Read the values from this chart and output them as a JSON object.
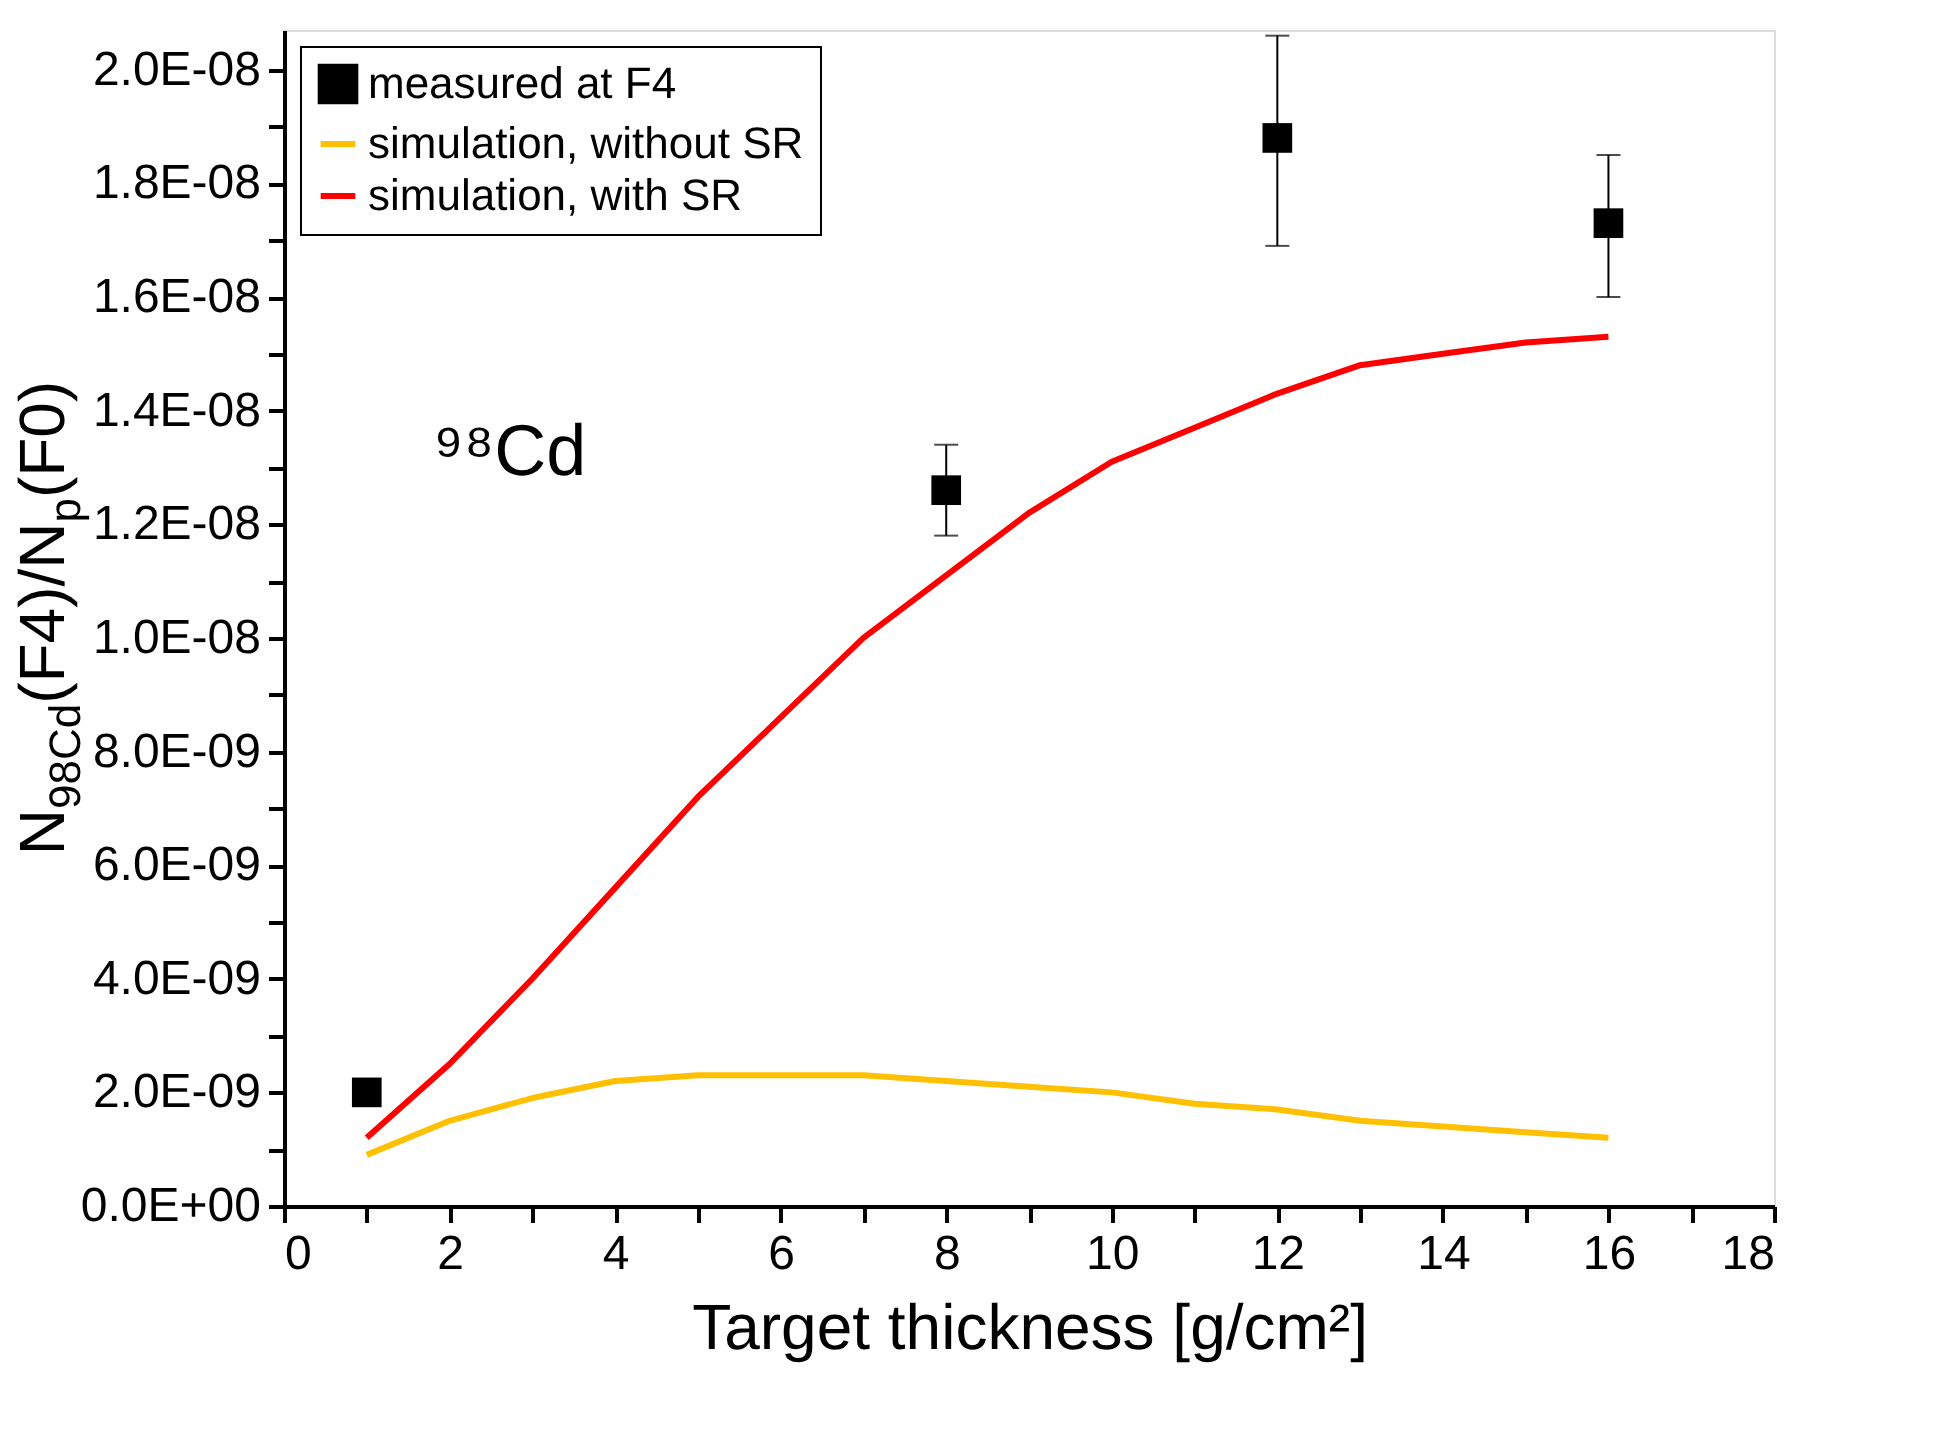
{
  "chart_data": {
    "type": "line",
    "xlabel": "Target thickness [g/cm²]",
    "ylabel": "N$_{98Cd}$(F4)/N$_{p}$(F0)",
    "annotations": [
      "⁹⁸Cd"
    ],
    "xlim": [
      0,
      18
    ],
    "xticks": [
      0,
      {
        "value": 1,
        "label": null
      },
      2,
      {
        "value": 3,
        "label": null
      },
      4,
      {
        "value": 5,
        "label": null
      },
      6,
      {
        "value": 7,
        "label": null
      },
      8,
      {
        "value": 9,
        "label": null
      },
      10,
      {
        "value": 11,
        "label": null
      },
      12,
      {
        "value": 13,
        "label": null
      },
      14,
      {
        "value": 15,
        "label": null
      },
      16,
      {
        "value": 17,
        "label": null
      },
      18
    ],
    "ylim": [
      0,
      2.07e-08
    ],
    "yticks": [
      {
        "value": 0,
        "label": "0.0E+00"
      },
      {
        "value": 1e-09,
        "label": null
      },
      {
        "value": 2e-09,
        "label": "2.0E-09"
      },
      {
        "value": 3e-09,
        "label": null
      },
      {
        "value": 4e-09,
        "label": "4.0E-09"
      },
      {
        "value": 5e-09,
        "label": null
      },
      {
        "value": 6e-09,
        "label": "6.0E-09"
      },
      {
        "value": 7e-09,
        "label": null
      },
      {
        "value": 8e-09,
        "label": "8.0E-09"
      },
      {
        "value": 9e-09,
        "label": null
      },
      {
        "value": 1e-08,
        "label": "1.0E-08"
      },
      {
        "value": 1.1e-08,
        "label": null
      },
      {
        "value": 1.2e-08,
        "label": "1.2E-08"
      },
      {
        "value": 1.3e-08,
        "label": null
      },
      {
        "value": 1.4e-08,
        "label": "1.4E-08"
      },
      {
        "value": 1.5e-08,
        "label": null
      },
      {
        "value": 1.6e-08,
        "label": "1.6E-08"
      },
      {
        "value": 1.7e-08,
        "label": null
      },
      {
        "value": 1.8e-08,
        "label": "1.8E-08"
      },
      {
        "value": 1.9e-08,
        "label": null
      },
      {
        "value": 2e-08,
        "label": "2.0E-08"
      }
    ],
    "grid": false,
    "legend": "top left",
    "series": [
      {
        "name": "measured at F4",
        "type": "scatter",
        "marker": "square",
        "color": "#000000",
        "x": [
          1,
          8,
          12,
          16
        ],
        "values": [
          2e-09,
          1.26e-08,
          1.88e-08,
          1.73e-08
        ],
        "errors": [
          null,
          [
            1.18e-08,
            1.34e-08
          ],
          [
            1.69e-08,
            2.06e-08
          ],
          [
            1.6e-08,
            1.85e-08
          ]
        ]
      },
      {
        "name": "simulation, without SR",
        "type": "line",
        "line_style": "solid",
        "color": "#ffc000",
        "x": [
          1,
          2,
          3,
          4,
          5,
          6,
          7,
          8,
          9,
          10,
          11,
          12,
          13,
          14,
          15,
          16
        ],
        "values": [
          9e-10,
          1.5e-09,
          1.9e-09,
          2.2e-09,
          2.3e-09,
          2.3e-09,
          2.3e-09,
          2.2e-09,
          2.1e-09,
          2e-09,
          1.8e-09,
          1.7e-09,
          1.5e-09,
          1.4e-09,
          1.3e-09,
          1.2e-09
        ]
      },
      {
        "name": "simulation, with SR",
        "type": "line",
        "line_style": "solid",
        "color": "#ff0000",
        "x": [
          1,
          2,
          3,
          4,
          5,
          6,
          7,
          8,
          9,
          10,
          11,
          12,
          13,
          14,
          15,
          16
        ],
        "values": [
          1.2e-09,
          2.5e-09,
          4e-09,
          5.6e-09,
          7.2e-09,
          8.6e-09,
          1e-08,
          1.11e-08,
          1.22e-08,
          1.31e-08,
          1.37e-08,
          1.43e-08,
          1.48e-08,
          1.5e-08,
          1.52e-08,
          1.53e-08
        ]
      }
    ]
  }
}
